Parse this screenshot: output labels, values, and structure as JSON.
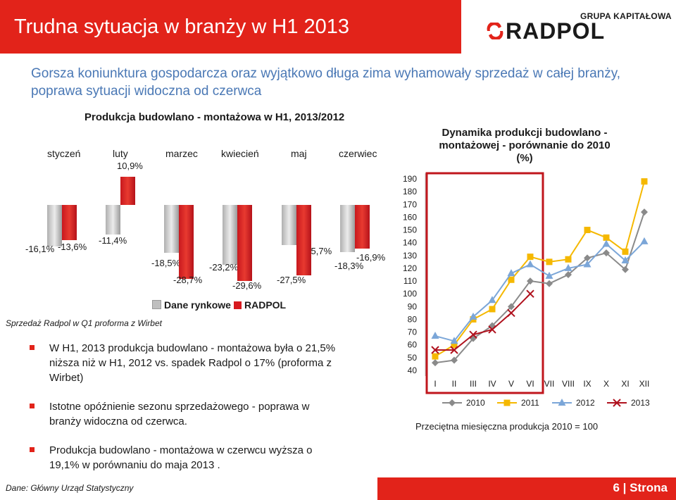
{
  "header": {
    "title": "Trudna sytuacja w branży w H1 2013",
    "logo_caption": "GRUPA KAPITAŁOWA",
    "logo_name": "RADPOL"
  },
  "subtitle": "Gorsza koniunktura gospodarcza oraz wyjątkowo długa zima wyhamowały sprzedaż w całej branży, poprawa sytuacji widoczna od czerwca",
  "colors": {
    "accent_red": "#e2231a",
    "subtitle_blue": "#4a78b5"
  },
  "chart_data": [
    {
      "type": "bar",
      "title": "Produkcja budowlano - montażowa w H1, 2013/2012",
      "categories": [
        "styczeń",
        "luty",
        "marzec",
        "kwiecień",
        "maj",
        "czerwiec"
      ],
      "series": [
        {
          "name": "Dane rynkowe",
          "values": [
            -16.1,
            -11.4,
            -18.5,
            -23.2,
            -15.7,
            -18.3
          ],
          "labels": [
            "-16,1%",
            "-11,4%",
            "-18,5%",
            "-23,2%",
            "-15,7%",
            "-18,3%"
          ],
          "color": "#bfbfbf"
        },
        {
          "name": "RADPOL",
          "values": [
            -13.6,
            10.9,
            -28.7,
            -29.6,
            -27.5,
            -16.9
          ],
          "labels": [
            "-13,6%",
            "10,9%",
            "-28,7%",
            "-29,6%",
            "-27,5%",
            "-16,9%"
          ],
          "color": "#d7191f"
        }
      ],
      "legend_position": "bottom",
      "note": "Sprzedaż Radpol w Q1 proforma z Wirbet"
    },
    {
      "type": "line",
      "title": "Dynamika produkcji budowlano - montażowej - porównanie do 2010 (%)",
      "categories": [
        "I",
        "II",
        "III",
        "IV",
        "V",
        "VI",
        "VII",
        "VIII",
        "IX",
        "X",
        "XI",
        "XII"
      ],
      "ylim": [
        40,
        190
      ],
      "yticks": [
        40,
        50,
        60,
        70,
        80,
        90,
        100,
        110,
        120,
        130,
        140,
        150,
        160,
        170,
        180,
        190
      ],
      "series": [
        {
          "name": "2010",
          "color": "#8a8a8a",
          "marker": "diamond",
          "values": [
            46,
            48,
            65,
            75,
            90,
            110,
            108,
            115,
            128,
            132,
            119,
            164
          ]
        },
        {
          "name": "2011",
          "color": "#f5b800",
          "marker": "square",
          "values": [
            51,
            60,
            80,
            88,
            111,
            129,
            125,
            127,
            150,
            144,
            133,
            188
          ]
        },
        {
          "name": "2012",
          "color": "#7ba6d8",
          "marker": "triangle",
          "values": [
            67,
            63,
            82,
            95,
            116,
            123,
            114,
            120,
            123,
            139,
            126,
            141
          ]
        },
        {
          "name": "2013",
          "color": "#b0121e",
          "marker": "x",
          "values": [
            56,
            56,
            68,
            72,
            85,
            100,
            null,
            null,
            null,
            null,
            null,
            null
          ]
        }
      ],
      "highlight": "I-VI",
      "legend_position": "bottom",
      "note": "Przeciętna miesięczna produkcja 2010 = 100"
    }
  ],
  "bullets": [
    "W H1, 2013 produkcja budowlano - montażowa była o 21,5% niższa niż w H1, 2012 vs. spadek Radpol o 17% (proforma z Wirbet)",
    "Istotne opóźnienie sezonu sprzedażowego - poprawa w branży widoczna od czerwca.",
    "Produkcja budowlano - montażowa w czerwcu wyższa o 19,1% w porównaniu do maja 2013 ."
  ],
  "footer": {
    "source": "Dane: Główny Urząd Statystyczny",
    "page": "6 | Strona"
  }
}
